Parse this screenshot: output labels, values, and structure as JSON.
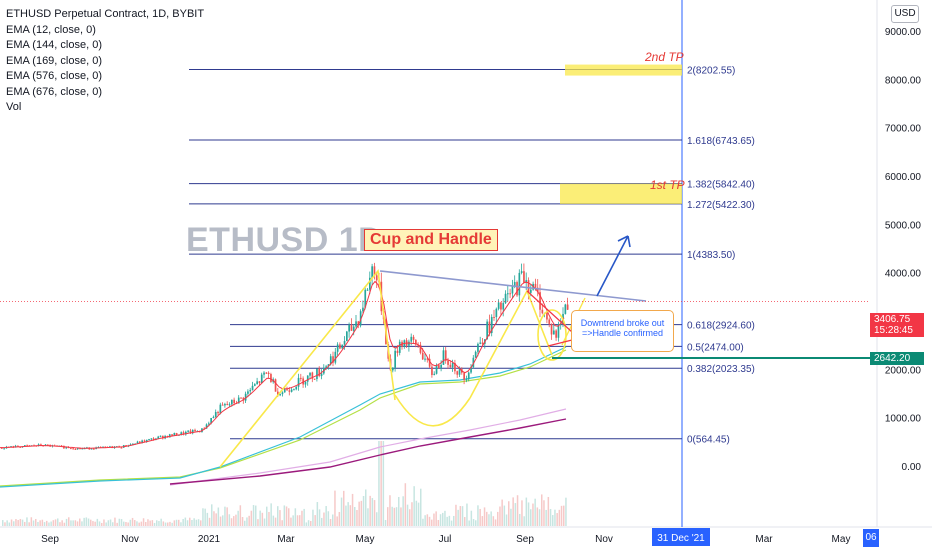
{
  "legend": {
    "title": "ETHUSD Perpetual Contract, 1D, BYBIT",
    "lines": [
      "EMA (12, close, 0)",
      "EMA (144, close, 0)",
      "EMA (169, close, 0)",
      "EMA (576, close, 0)",
      "EMA (676, close, 0)",
      "Vol"
    ]
  },
  "currency_button": "USD",
  "watermark": "ETHUSD 1D",
  "pattern_label": "Cup and Handle",
  "tp_labels": [
    "2nd TP",
    "1st TP"
  ],
  "note": {
    "line1": "Downtrend broke out",
    "line2": "=>Handle confirmed"
  },
  "price_tags": {
    "current": "3406.75",
    "countdown": "15:28:45",
    "support": "2642.20"
  },
  "badge": "06",
  "colors": {
    "fib": "#2f3a8f",
    "ema_fast": "#f23645",
    "ema_144": "#38c1d8",
    "ema_169": "#b4e046",
    "ema_576": "#e1aee6",
    "ema_676": "#9b1a7c",
    "up": "#26a69a",
    "down": "#ef5350",
    "pattern": "#f9e84a",
    "support": "#0b8a74"
  },
  "chart_data": {
    "type": "candlestick",
    "ylim": [
      -600,
      9600
    ],
    "yticks": [
      0,
      1000,
      2000,
      3000,
      4000,
      5000,
      6000,
      7000,
      8000,
      9000
    ],
    "ytick_labels": [
      "0.00",
      "1000.00",
      "2000.00",
      "3000.00",
      "4000.00",
      "5000.00",
      "6000.00",
      "7000.00",
      "8000.00",
      "9000.00"
    ],
    "xlabels": [
      "Sep",
      "Nov",
      "2021",
      "Mar",
      "May",
      "Jul",
      "Sep",
      "Nov",
      "31 Dec '21",
      "Mar",
      "May"
    ],
    "fib_levels": [
      {
        "ratio": "0",
        "price": 564.45,
        "label": "0(564.45)"
      },
      {
        "ratio": "0.382",
        "price": 2023.35,
        "label": "0.382(2023.35)"
      },
      {
        "ratio": "0.5",
        "price": 2474.0,
        "label": "0.5(2474.00)"
      },
      {
        "ratio": "0.618",
        "price": 2924.6,
        "label": "0.618(2924.60)"
      },
      {
        "ratio": "1",
        "price": 4383.5,
        "label": "1(4383.50)"
      },
      {
        "ratio": "1.272",
        "price": 5422.3,
        "label": "1.272(5422.30)"
      },
      {
        "ratio": "1.382",
        "price": 5842.4,
        "label": "1.382(5842.40)"
      },
      {
        "ratio": "1.618",
        "price": 6743.65,
        "label": "1.618(6743.65)"
      },
      {
        "ratio": "2",
        "price": 8202.55,
        "label": "2(8202.55)"
      }
    ],
    "price_path": [
      [
        "2020-08-01",
        380
      ],
      [
        "2020-09-01",
        430
      ],
      [
        "2020-10-01",
        360
      ],
      [
        "2020-11-01",
        400
      ],
      [
        "2020-12-01",
        600
      ],
      [
        "2021-01-01",
        740
      ],
      [
        "2021-01-15",
        1200
      ],
      [
        "2021-02-01",
        1400
      ],
      [
        "2021-02-20",
        1930
      ],
      [
        "2021-03-01",
        1500
      ],
      [
        "2021-03-20",
        1800
      ],
      [
        "2021-04-01",
        1950
      ],
      [
        "2021-04-15",
        2400
      ],
      [
        "2021-05-01",
        3100
      ],
      [
        "2021-05-12",
        4200
      ],
      [
        "2021-05-20",
        3000
      ],
      [
        "2021-05-24",
        1900
      ],
      [
        "2021-06-01",
        2600
      ],
      [
        "2021-06-15",
        2500
      ],
      [
        "2021-06-25",
        1900
      ],
      [
        "2021-07-05",
        2300
      ],
      [
        "2021-07-20",
        1800
      ],
      [
        "2021-08-01",
        2600
      ],
      [
        "2021-08-15",
        3200
      ],
      [
        "2021-09-03",
        3950
      ],
      [
        "2021-09-15",
        3450
      ],
      [
        "2021-09-22",
        2900
      ],
      [
        "2021-09-28",
        2700
      ],
      [
        "2021-10-06",
        3406.75
      ]
    ],
    "current_price": 3406.75,
    "support_price": 2642.2,
    "volume_note": "volume histogram along bottom"
  }
}
